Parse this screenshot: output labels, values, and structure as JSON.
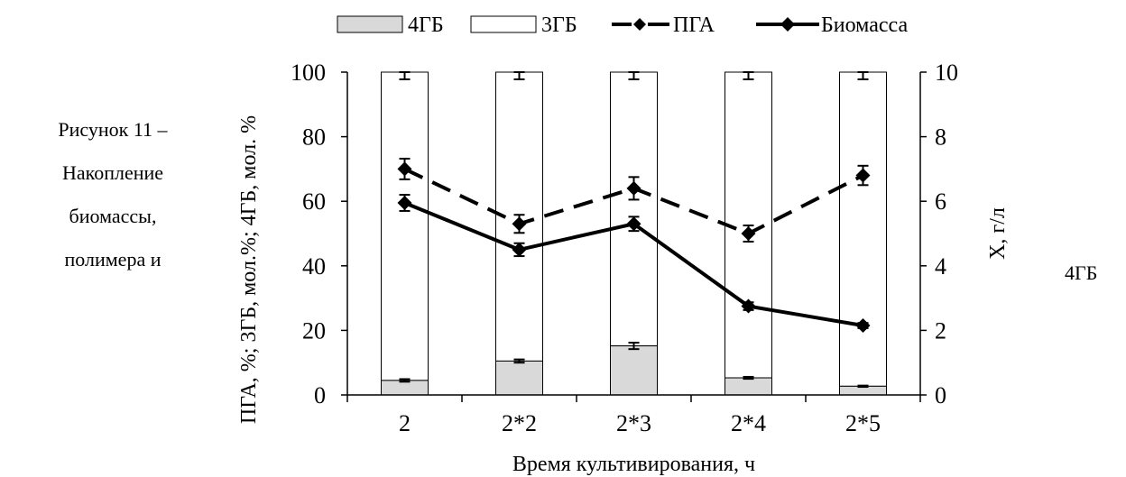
{
  "caption": {
    "lines": [
      "Рисунок 11 –",
      "Накопление",
      "биомассы,",
      "полимера и"
    ]
  },
  "right_word": "4ГБ",
  "colors": {
    "bar_4gb": "#d9d9d9",
    "bar_3gb": "#ffffff",
    "stroke": "#000000"
  },
  "chart_data": {
    "type": "bar",
    "categories": [
      "2",
      "2*2",
      "2*3",
      "2*4",
      "2*5"
    ],
    "xlabel": "Время культивирования, ч",
    "ylabel": "ПГА, %; 3ГБ, мол.%; 4ГБ, мол. %",
    "y2label": "X, г/л",
    "ylim": [
      0,
      100
    ],
    "y2lim": [
      0,
      10
    ],
    "yticks": [
      "0",
      "20",
      "40",
      "60",
      "80",
      "100"
    ],
    "y2ticks": [
      "0",
      "2",
      "4",
      "6",
      "8",
      "10"
    ],
    "legend_position": "top",
    "legend": [
      "4ГБ",
      "3ГБ",
      "ПГА",
      "Биомасса"
    ],
    "series": [
      {
        "name": "4ГБ",
        "type": "stacked-bar",
        "axis": "left",
        "values": [
          4.5,
          10.5,
          15.2,
          5.3,
          2.7
        ],
        "errors": [
          0.4,
          0.5,
          1.0,
          0.3,
          0.2
        ]
      },
      {
        "name": "3ГБ",
        "type": "stacked-bar",
        "axis": "left",
        "values": [
          95.5,
          89.5,
          84.8,
          94.7,
          97.3
        ],
        "errors": [
          1.2,
          1.2,
          1.2,
          1.2,
          1.2
        ]
      },
      {
        "name": "ПГА",
        "type": "line",
        "style": "dashed",
        "axis": "left",
        "values": [
          70,
          53,
          64,
          50,
          68
        ],
        "errors": [
          3.2,
          2.8,
          3.5,
          2.5,
          3.0
        ]
      },
      {
        "name": "Биомасса",
        "type": "line",
        "style": "solid",
        "axis": "right",
        "values": [
          5.95,
          4.5,
          5.3,
          2.75,
          2.15
        ],
        "errors": [
          0.25,
          0.2,
          0.22,
          0.12,
          0.08
        ]
      }
    ]
  }
}
